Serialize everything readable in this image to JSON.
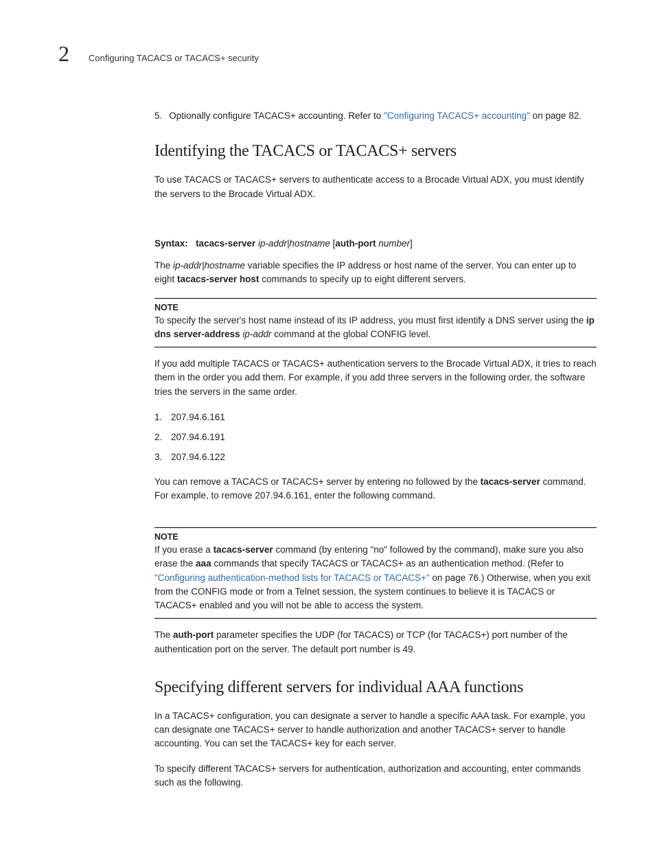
{
  "header": {
    "chapter_number": "2",
    "title": "Configuring TACACS or TACACS+ security"
  },
  "item5": {
    "num": "5.",
    "text_before": "Optionally configure TACACS+ accounting. Refer to ",
    "link_text": "\"Configuring TACACS+ accounting\"",
    "text_after": " on page 82."
  },
  "section1": {
    "heading": "Identifying the TACACS or TACACS+ servers",
    "intro": "To use TACACS or TACACS+ servers to authenticate access to a Brocade Virtual ADX, you must identify the servers to the Brocade Virtual ADX.",
    "syntax_label": "Syntax:",
    "syntax_cmd": "tacacs-server",
    "syntax_args_italic1": "ip-addr|hostname",
    "syntax_bracket_open": " [",
    "syntax_authport": "auth-port",
    "syntax_args_italic2": " number",
    "syntax_bracket_close": "]",
    "ipaddr_para_1a": "The ",
    "ipaddr_para_1b": "ip-addr|hostname",
    "ipaddr_para_1c": " variable specifies the IP address or host name of the server. You can enter up to eight ",
    "ipaddr_para_1d": "tacacs-server host",
    "ipaddr_para_1e": " commands to specify up to eight different servers.",
    "note1_label": "NOTE",
    "note1_a": "To specify the server's host name instead of its IP address, you must first identify a DNS server using the ",
    "note1_b": "ip dns server-address",
    "note1_c": " ip-addr",
    "note1_d": " command at the global CONFIG level.",
    "multi_para": "If you add multiple TACACS or TACACS+ authentication servers to the Brocade Virtual ADX, it tries to reach them in the order you add them. For example, if you add three servers in the following order, the software tries the servers in the same order.",
    "servers": [
      {
        "num": "1.",
        "ip": "207.94.6.161"
      },
      {
        "num": "2.",
        "ip": "207.94.6.191"
      },
      {
        "num": "3.",
        "ip": "207.94.6.122"
      }
    ],
    "remove_a": "You can remove a TACACS or TACACS+ server by entering no followed by the ",
    "remove_b": "tacacs-server",
    "remove_c": " command. For example, to remove 207.94.6.161, enter the following command.",
    "note2_label": "NOTE",
    "note2_a": "If you erase a ",
    "note2_b": "tacacs-server",
    "note2_c": " command (by entering \"no\" followed by the command), make sure you also erase the ",
    "note2_d": "aaa",
    "note2_e": " commands that specify TACACS or TACACS+ as an authentication method. (Refer to ",
    "note2_link": "\"Configuring authentication-method lists for TACACS  or TACACS+\"",
    "note2_f": " on page 76.) Otherwise, when you exit from the CONFIG mode or from a Telnet session, the system continues to believe it is TACACS or TACACS+ enabled and you will not be able to access the system.",
    "authport_a": "The ",
    "authport_b": "auth-port",
    "authport_c": " parameter specifies the UDP (for TACACS) or TCP (for TACACS+) port number of the authentication port on the server. The default port number is 49."
  },
  "section2": {
    "heading": "Specifying different servers for individual AAA functions",
    "para1": "In a TACACS+ configuration, you can designate a server to handle a specific AAA task. For example, you can designate one TACACS+ server to handle authorization and another TACACS+ server to handle accounting. You can set the TACACS+ key for each server.",
    "para2": "To specify different TACACS+ servers for authentication, authorization and accounting, enter commands such as the following."
  }
}
